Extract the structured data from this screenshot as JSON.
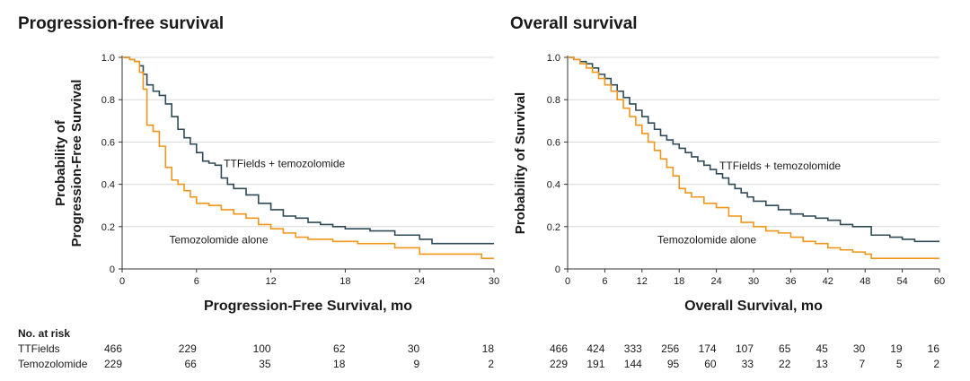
{
  "titles": {
    "pfs": "Progression-free survival",
    "os": "Overall survival"
  },
  "risk_table": {
    "heading": "No. at risk",
    "row_labels": [
      "TTFields",
      "Temozolomide"
    ]
  },
  "colors": {
    "ttfields": "#2e4a57",
    "tmz": "#f0961c",
    "axis": "#333333",
    "grid": "#d9d9d9"
  },
  "chart_data": [
    {
      "type": "line",
      "step": true,
      "ylabel": [
        "Probability of",
        "Progression-Free Survival"
      ],
      "xlabel": "Progression-Free Survival, mo",
      "xlim": [
        0,
        30
      ],
      "ylim": [
        0,
        1.0
      ],
      "x_ticks": [
        0,
        6,
        12,
        18,
        24,
        30
      ],
      "y_ticks": [
        "0",
        "0.2",
        "0.4",
        "0.6",
        "0.8",
        "1.0"
      ],
      "grid": true,
      "annotations": [
        {
          "text": "TTFields + temozolomide",
          "x": 8.2,
          "y": 0.48
        },
        {
          "text": "Temozolomide alone",
          "x": 3.8,
          "y": 0.12
        }
      ],
      "series": [
        {
          "key": "ttfields",
          "points": [
            [
              0,
              1.0
            ],
            [
              0.6,
              0.99
            ],
            [
              1.0,
              0.98
            ],
            [
              1.4,
              0.96
            ],
            [
              1.7,
              0.92
            ],
            [
              2.0,
              0.87
            ],
            [
              2.5,
              0.84
            ],
            [
              3.0,
              0.82
            ],
            [
              3.5,
              0.78
            ],
            [
              4.0,
              0.72
            ],
            [
              4.5,
              0.66
            ],
            [
              5.0,
              0.62
            ],
            [
              5.5,
              0.59
            ],
            [
              6.0,
              0.55
            ],
            [
              6.5,
              0.51
            ],
            [
              7.0,
              0.5
            ],
            [
              7.5,
              0.49
            ],
            [
              8.0,
              0.43
            ],
            [
              8.5,
              0.4
            ],
            [
              9.0,
              0.38
            ],
            [
              10.0,
              0.35
            ],
            [
              11.0,
              0.31
            ],
            [
              12.0,
              0.28
            ],
            [
              13.0,
              0.25
            ],
            [
              14.0,
              0.24
            ],
            [
              15.0,
              0.22
            ],
            [
              16.0,
              0.21
            ],
            [
              17.0,
              0.2
            ],
            [
              18.0,
              0.19
            ],
            [
              20.0,
              0.18
            ],
            [
              22.0,
              0.16
            ],
            [
              24.0,
              0.14
            ],
            [
              25.0,
              0.12
            ],
            [
              30.0,
              0.12
            ]
          ]
        },
        {
          "key": "tmz",
          "points": [
            [
              0,
              1.0
            ],
            [
              0.6,
              0.99
            ],
            [
              1.0,
              0.98
            ],
            [
              1.4,
              0.93
            ],
            [
              1.7,
              0.85
            ],
            [
              2.0,
              0.68
            ],
            [
              2.5,
              0.65
            ],
            [
              3.0,
              0.58
            ],
            [
              3.5,
              0.48
            ],
            [
              4.0,
              0.42
            ],
            [
              4.5,
              0.4
            ],
            [
              5.0,
              0.37
            ],
            [
              5.5,
              0.34
            ],
            [
              6.0,
              0.31
            ],
            [
              7.0,
              0.3
            ],
            [
              8.0,
              0.28
            ],
            [
              9.0,
              0.26
            ],
            [
              10.0,
              0.24
            ],
            [
              11.0,
              0.21
            ],
            [
              12.0,
              0.19
            ],
            [
              13.0,
              0.17
            ],
            [
              14.0,
              0.15
            ],
            [
              15.0,
              0.14
            ],
            [
              17.0,
              0.13
            ],
            [
              19.0,
              0.12
            ],
            [
              22.0,
              0.1
            ],
            [
              24.0,
              0.07
            ],
            [
              27.0,
              0.07
            ],
            [
              29.0,
              0.05
            ],
            [
              30.0,
              0.05
            ]
          ]
        }
      ],
      "risk_ticks": [
        0,
        6,
        12,
        18,
        24,
        30
      ],
      "risk_values": {
        "ttfields": [
          "466",
          "229",
          "100",
          "62",
          "30",
          "18"
        ],
        "tmz": [
          "229",
          "66",
          "35",
          "18",
          "9",
          "2"
        ]
      }
    },
    {
      "type": "line",
      "step": true,
      "ylabel": [
        "Probability of Survival"
      ],
      "xlabel": "Overall Survival, mo",
      "xlim": [
        0,
        60
      ],
      "ylim": [
        0,
        1.0
      ],
      "x_ticks": [
        0,
        6,
        12,
        18,
        24,
        30,
        36,
        42,
        48,
        54,
        60
      ],
      "y_ticks": [
        "0",
        "0.2",
        "0.4",
        "0.6",
        "0.8",
        "1.0"
      ],
      "grid": true,
      "annotations": [
        {
          "text": "TTFields + temozolomide",
          "x": 24.5,
          "y": 0.47
        },
        {
          "text": "Temozolomide alone",
          "x": 14.5,
          "y": 0.12
        }
      ],
      "series": [
        {
          "key": "ttfields",
          "points": [
            [
              0,
              1.0
            ],
            [
              1,
              0.99
            ],
            [
              2,
              0.98
            ],
            [
              3,
              0.97
            ],
            [
              4,
              0.95
            ],
            [
              5,
              0.92
            ],
            [
              6,
              0.9
            ],
            [
              7,
              0.87
            ],
            [
              8,
              0.84
            ],
            [
              9,
              0.81
            ],
            [
              10,
              0.78
            ],
            [
              11,
              0.75
            ],
            [
              12,
              0.72
            ],
            [
              13,
              0.69
            ],
            [
              14,
              0.66
            ],
            [
              15,
              0.63
            ],
            [
              16,
              0.61
            ],
            [
              17,
              0.59
            ],
            [
              18,
              0.57
            ],
            [
              19,
              0.55
            ],
            [
              20,
              0.53
            ],
            [
              21,
              0.51
            ],
            [
              22,
              0.49
            ],
            [
              23,
              0.47
            ],
            [
              24,
              0.45
            ],
            [
              25,
              0.43
            ],
            [
              26,
              0.4
            ],
            [
              27,
              0.38
            ],
            [
              28,
              0.36
            ],
            [
              29,
              0.34
            ],
            [
              30,
              0.32
            ],
            [
              32,
              0.3
            ],
            [
              34,
              0.28
            ],
            [
              36,
              0.26
            ],
            [
              38,
              0.25
            ],
            [
              40,
              0.24
            ],
            [
              42,
              0.23
            ],
            [
              44,
              0.21
            ],
            [
              46,
              0.2
            ],
            [
              48,
              0.2
            ],
            [
              49,
              0.16
            ],
            [
              52,
              0.15
            ],
            [
              54,
              0.14
            ],
            [
              56,
              0.13
            ],
            [
              60,
              0.13
            ]
          ]
        },
        {
          "key": "tmz",
          "points": [
            [
              0,
              1.0
            ],
            [
              1,
              0.99
            ],
            [
              2,
              0.97
            ],
            [
              3,
              0.95
            ],
            [
              4,
              0.93
            ],
            [
              5,
              0.9
            ],
            [
              6,
              0.87
            ],
            [
              7,
              0.84
            ],
            [
              8,
              0.8
            ],
            [
              9,
              0.76
            ],
            [
              10,
              0.72
            ],
            [
              11,
              0.68
            ],
            [
              12,
              0.64
            ],
            [
              13,
              0.6
            ],
            [
              14,
              0.56
            ],
            [
              15,
              0.52
            ],
            [
              16,
              0.48
            ],
            [
              17,
              0.44
            ],
            [
              18,
              0.38
            ],
            [
              19,
              0.36
            ],
            [
              20,
              0.34
            ],
            [
              22,
              0.31
            ],
            [
              24,
              0.29
            ],
            [
              26,
              0.25
            ],
            [
              28,
              0.22
            ],
            [
              30,
              0.2
            ],
            [
              32,
              0.18
            ],
            [
              34,
              0.17
            ],
            [
              36,
              0.15
            ],
            [
              38,
              0.13
            ],
            [
              40,
              0.12
            ],
            [
              42,
              0.1
            ],
            [
              44,
              0.09
            ],
            [
              46,
              0.08
            ],
            [
              48,
              0.07
            ],
            [
              49,
              0.05
            ],
            [
              52,
              0.05
            ],
            [
              56,
              0.05
            ],
            [
              60,
              0.05
            ]
          ]
        }
      ],
      "risk_ticks": [
        0,
        6,
        12,
        18,
        24,
        30,
        36,
        42,
        48,
        54,
        60
      ],
      "risk_values": {
        "ttfields": [
          "466",
          "424",
          "333",
          "256",
          "174",
          "107",
          "65",
          "45",
          "30",
          "19",
          "16"
        ],
        "tmz": [
          "229",
          "191",
          "144",
          "95",
          "60",
          "33",
          "22",
          "13",
          "7",
          "5",
          "2"
        ]
      }
    }
  ]
}
